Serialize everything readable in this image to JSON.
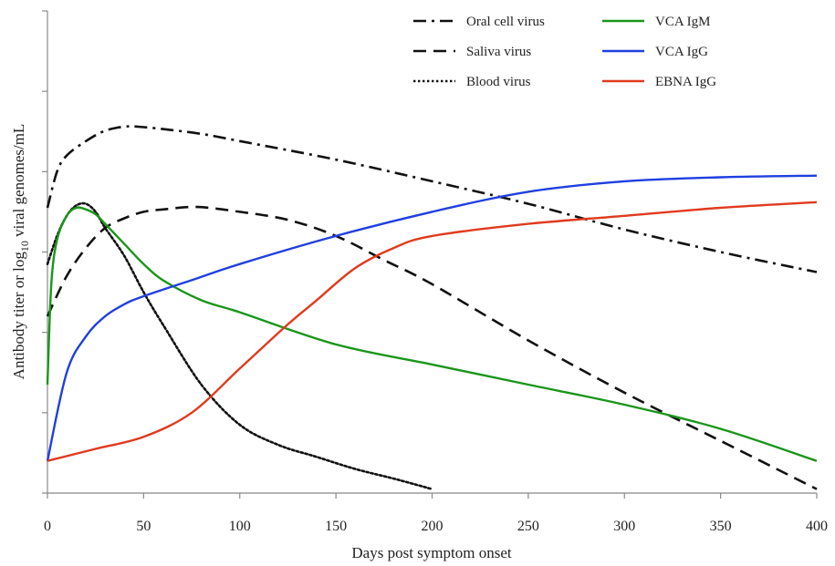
{
  "chart_data": {
    "type": "line",
    "xlabel": "Days post symptom onset",
    "ylabel": "Antibody titer or log10 viral genomes/mL",
    "ylabel_main": "Antibody titer or log",
    "ylabel_sub": "10",
    "ylabel_tail": " viral genomes/mL",
    "xlim": [
      0,
      400
    ],
    "ylim": [
      0,
      6
    ],
    "xticks": [
      0,
      50,
      100,
      150,
      200,
      250,
      300,
      350,
      400
    ],
    "xtick_labels": [
      "0",
      "50",
      "100",
      "150",
      "200",
      "250",
      "300",
      "350",
      "400"
    ],
    "yticks": [
      0,
      1,
      2,
      3,
      4,
      5,
      6
    ],
    "ytick_labels": [],
    "grid": false,
    "legend_position": "top",
    "series": [
      {
        "name": "Oral cell virus",
        "color": "#111111",
        "dash": "dashdot",
        "x": [
          0,
          5,
          10,
          20,
          30,
          40,
          47,
          60,
          80,
          100,
          150,
          200,
          250,
          300,
          350,
          400
        ],
        "y": [
          3.55,
          4.0,
          4.2,
          4.38,
          4.51,
          4.56,
          4.56,
          4.53,
          4.47,
          4.38,
          4.15,
          3.88,
          3.6,
          3.28,
          3.0,
          2.75
        ]
      },
      {
        "name": "Saliva virus",
        "color": "#111111",
        "dash": "dashed",
        "x": [
          0,
          10,
          20,
          30,
          40,
          50,
          60,
          78,
          100,
          125,
          150,
          175,
          200,
          250,
          300,
          350,
          400
        ],
        "y": [
          2.2,
          2.7,
          3.05,
          3.3,
          3.42,
          3.5,
          3.53,
          3.56,
          3.5,
          3.4,
          3.2,
          2.9,
          2.6,
          1.9,
          1.25,
          0.65,
          0.05
        ]
      },
      {
        "name": "Blood virus",
        "color": "#111111",
        "dash": "dotted",
        "x": [
          0,
          5,
          10,
          15,
          20,
          25,
          30,
          40,
          50,
          60,
          80,
          100,
          120,
          140,
          160,
          180,
          200
        ],
        "y": [
          2.85,
          3.2,
          3.45,
          3.58,
          3.6,
          3.5,
          3.3,
          2.95,
          2.5,
          2.1,
          1.35,
          0.85,
          0.6,
          0.45,
          0.3,
          0.18,
          0.05
        ]
      },
      {
        "name": "VCA IgM",
        "color": "#1a961a",
        "dash": "solid",
        "x": [
          0,
          2,
          5,
          10,
          15,
          20,
          25,
          30,
          40,
          50,
          60,
          80,
          100,
          150,
          200,
          250,
          300,
          350,
          400
        ],
        "y": [
          1.35,
          2.6,
          3.15,
          3.45,
          3.55,
          3.53,
          3.47,
          3.35,
          3.1,
          2.85,
          2.65,
          2.4,
          2.25,
          1.85,
          1.6,
          1.35,
          1.1,
          0.8,
          0.4
        ]
      },
      {
        "name": "VCA IgG",
        "color": "#1f3fe0",
        "dash": "solid",
        "x": [
          0,
          10,
          20,
          30,
          40,
          50,
          75,
          100,
          150,
          200,
          250,
          300,
          350,
          400
        ],
        "y": [
          0.4,
          1.5,
          1.95,
          2.2,
          2.35,
          2.45,
          2.65,
          2.85,
          3.2,
          3.5,
          3.75,
          3.88,
          3.93,
          3.95
        ]
      },
      {
        "name": "EBNA IgG",
        "color": "#e03a1e",
        "dash": "solid",
        "x": [
          0,
          25,
          50,
          75,
          100,
          125,
          140,
          160,
          180,
          200,
          250,
          300,
          350,
          400
        ],
        "y": [
          0.4,
          0.55,
          0.7,
          1.0,
          1.55,
          2.1,
          2.4,
          2.8,
          3.05,
          3.2,
          3.35,
          3.45,
          3.55,
          3.62
        ]
      }
    ]
  }
}
